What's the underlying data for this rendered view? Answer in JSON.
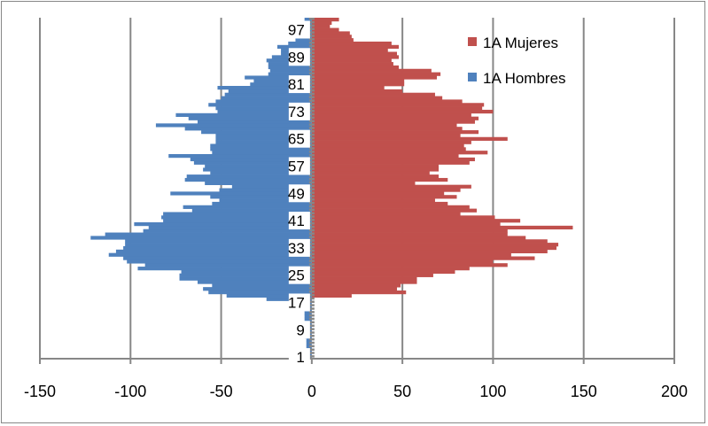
{
  "chart_data": {
    "type": "bar",
    "orientation": "horizontal",
    "title": "",
    "xlabel": "",
    "ylabel": "",
    "xlim": [
      -150,
      200
    ],
    "x_ticks": [
      "-150",
      "-100",
      "-50",
      "0",
      "50",
      "100",
      "150",
      "200"
    ],
    "x_tick_values": [
      -150,
      -100,
      -50,
      0,
      50,
      100,
      150,
      200
    ],
    "grid": "vertical",
    "legend_position": "top-right",
    "ages": [
      1,
      2,
      3,
      4,
      5,
      6,
      7,
      8,
      9,
      10,
      11,
      12,
      13,
      14,
      15,
      16,
      17,
      18,
      19,
      20,
      21,
      22,
      23,
      24,
      25,
      26,
      27,
      28,
      29,
      30,
      31,
      32,
      33,
      34,
      35,
      36,
      37,
      38,
      39,
      40,
      41,
      42,
      43,
      44,
      45,
      46,
      47,
      48,
      49,
      50,
      51,
      52,
      53,
      54,
      55,
      56,
      57,
      58,
      59,
      60,
      61,
      62,
      63,
      64,
      65,
      66,
      67,
      68,
      69,
      70,
      71,
      72,
      73,
      74,
      75,
      76,
      77,
      78,
      79,
      80,
      81,
      82,
      83,
      84,
      85,
      86,
      87,
      88,
      89,
      90,
      91,
      92,
      93,
      94,
      95,
      96,
      97,
      98,
      99,
      100
    ],
    "age_tick_labels": [
      "1",
      "9",
      "17",
      "25",
      "33",
      "41",
      "49",
      "57",
      "65",
      "73",
      "81",
      "89",
      "97"
    ],
    "age_tick_values": [
      1,
      9,
      17,
      25,
      33,
      41,
      49,
      57,
      65,
      73,
      81,
      89,
      97
    ],
    "series": [
      {
        "name": "1A Mujeres",
        "color": "#C0504D",
        "values": [
          0,
          0,
          0,
          0,
          0,
          0,
          0,
          0,
          0,
          0,
          0,
          0,
          0,
          0,
          0,
          0,
          0,
          0,
          22,
          52,
          47,
          49,
          58,
          58,
          67,
          79,
          87,
          108,
          100,
          123,
          110,
          130,
          135,
          136,
          130,
          118,
          108,
          108,
          144,
          104,
          115,
          101,
          82,
          91,
          87,
          75,
          68,
          80,
          73,
          82,
          88,
          57,
          75,
          70,
          65,
          70,
          70,
          87,
          90,
          81,
          97,
          85,
          84,
          88,
          108,
          82,
          92,
          83,
          80,
          90,
          92,
          88,
          100,
          94,
          95,
          83,
          72,
          68,
          50,
          40,
          51,
          51,
          69,
          71,
          66,
          48,
          45,
          44,
          48,
          47,
          42,
          48,
          44,
          23,
          22,
          21,
          15,
          10,
          11,
          15
        ]
      },
      {
        "name": "1A Hombres",
        "color": "#4F81BD",
        "values": [
          -2,
          -3,
          -3,
          -3,
          -3,
          -3,
          -4,
          -4,
          -4,
          -4,
          -4,
          -4,
          -4,
          -4,
          -4,
          -4,
          -4,
          -25,
          -47,
          -57,
          -60,
          -55,
          -63,
          -73,
          -73,
          -72,
          -96,
          -92,
          -102,
          -104,
          -112,
          -108,
          -104,
          -103,
          -103,
          -122,
          -114,
          -93,
          -90,
          -98,
          -82,
          -83,
          -82,
          -66,
          -71,
          -55,
          -51,
          -56,
          -78,
          -51,
          -44,
          -59,
          -70,
          -69,
          -56,
          -60,
          -59,
          -65,
          -67,
          -79,
          -55,
          -56,
          -56,
          -53,
          -53,
          -53,
          -61,
          -70,
          -86,
          -63,
          -68,
          -75,
          -52,
          -53,
          -57,
          -53,
          -50,
          -48,
          -46,
          -52,
          -34,
          -32,
          -37,
          -24,
          -23,
          -24,
          -24,
          -25,
          -22,
          -17,
          -17,
          -19,
          -13,
          -9,
          -9,
          -9,
          -5,
          -3,
          -3,
          -4
        ]
      }
    ]
  }
}
